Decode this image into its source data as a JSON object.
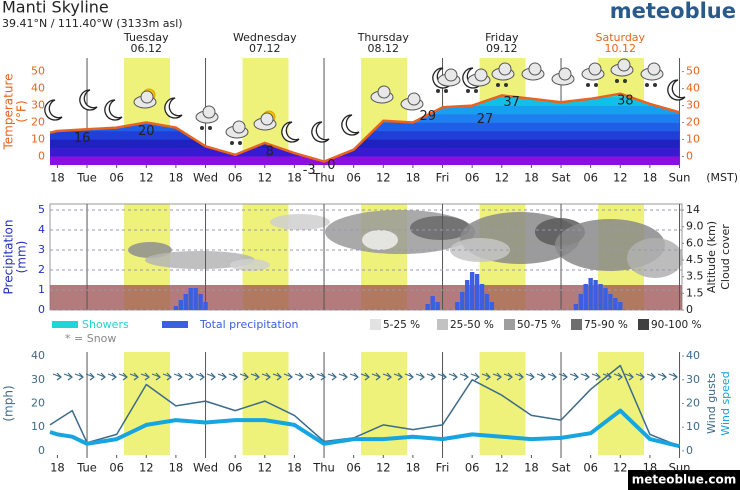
{
  "header": {
    "title": "Manti Skyline",
    "location": "39.41°N / 111.40°W (3133m asl)",
    "logo": "meteoblue",
    "timezone": "(MST)",
    "days": [
      {
        "name": "Tuesday",
        "date": "06.12",
        "color": "#222"
      },
      {
        "name": "Wednesday",
        "date": "07.12",
        "color": "#222"
      },
      {
        "name": "Thursday",
        "date": "08.12",
        "color": "#222"
      },
      {
        "name": "Friday",
        "date": "09.12",
        "color": "#222"
      },
      {
        "name": "Saturday",
        "date": "10.12",
        "color": "#e8641e"
      }
    ]
  },
  "footer": "meteoblue.com",
  "chart_data": [
    {
      "type": "line",
      "ylabel": "Temperature",
      "yunit": "(°F)",
      "color": "#e8641e",
      "area_fill": true,
      "xlim": [
        16.5,
        144.5
      ],
      "xticks": [
        18,
        {
          "value": 24,
          "label": "Tue"
        },
        {
          "value": 30,
          "label": "06"
        },
        {
          "value": 36,
          "label": "12"
        },
        {
          "value": 42,
          "label": "18"
        },
        {
          "value": 48,
          "label": "Wed"
        },
        {
          "value": 54,
          "label": "06"
        },
        {
          "value": 60,
          "label": "12"
        },
        {
          "value": 66,
          "label": "18"
        },
        {
          "value": 72,
          "label": "Thu"
        },
        {
          "value": 78,
          "label": "06"
        },
        {
          "value": 84,
          "label": "12"
        },
        {
          "value": 90,
          "label": "18"
        },
        {
          "value": 96,
          "label": "Fri"
        },
        {
          "value": 102,
          "label": "06"
        },
        {
          "value": 108,
          "label": "12"
        },
        {
          "value": 114,
          "label": "18"
        },
        {
          "value": 120,
          "label": "Sat"
        },
        {
          "value": 126,
          "label": "06"
        },
        {
          "value": 132,
          "label": "12"
        },
        {
          "value": 138,
          "label": "18"
        },
        {
          "value": 144,
          "label": "Sun"
        }
      ],
      "ylim": [
        -5,
        58
      ],
      "yticks": [
        0,
        10,
        20,
        30,
        40,
        50
      ],
      "y2lim": [
        -5,
        58
      ],
      "y2ticks": [
        0,
        10,
        20,
        30,
        40,
        50
      ],
      "x": [
        16.5,
        18,
        24,
        30,
        36,
        42,
        48,
        54,
        60,
        66,
        72,
        78,
        84,
        90,
        96,
        102,
        108,
        114,
        120,
        126,
        132,
        138,
        144
      ],
      "values": [
        14,
        15,
        16,
        17,
        20,
        17,
        6,
        1,
        8,
        2,
        -3,
        4,
        21,
        20,
        29,
        30,
        36,
        34,
        32,
        34,
        37,
        31,
        26
      ],
      "annotations": [
        {
          "x": 23,
          "value": 16
        },
        {
          "x": 36,
          "value": 20
        },
        {
          "x": 61,
          "value": 8
        },
        {
          "x": 69,
          "value": -3
        },
        {
          "x": 73.5,
          "value": 0
        },
        {
          "x": 93,
          "value": 29
        },
        {
          "x": 104.6,
          "value": 27
        },
        {
          "x": 110,
          "value": 37
        },
        {
          "x": 133,
          "value": 38
        }
      ]
    },
    {
      "type": "bar",
      "ylabel": "Precipitation",
      "yunit": "(mm)",
      "grid": true,
      "xlim": [
        16.5,
        144.5
      ],
      "ylim": [
        0,
        5.3
      ],
      "yticks": [
        0,
        1,
        2,
        3,
        4,
        5
      ],
      "y2label": "Altitude (km)",
      "y2label2": "Cloud cover",
      "y2ticks": [
        14,
        {
          "value": 9,
          "label": "9.0"
        },
        {
          "value": 6,
          "label": "6.0"
        },
        4.5,
        3.5,
        1.5,
        0
      ],
      "x": [
        42,
        43,
        44,
        45,
        46,
        47,
        48,
        93,
        94,
        95,
        99,
        100,
        101,
        102,
        103,
        104,
        105,
        106,
        123,
        124,
        125,
        126,
        127,
        128,
        129,
        130,
        131,
        132
      ],
      "series": [
        {
          "name": "Showers",
          "color": "#1ed6d6",
          "values": [
            0,
            0,
            0,
            0,
            0,
            0,
            0,
            0,
            0,
            0,
            0,
            0,
            0,
            0,
            0,
            0,
            0,
            0,
            0,
            0,
            0,
            0,
            0,
            0,
            0,
            0,
            0,
            0
          ]
        },
        {
          "name": "Total precipitation",
          "color": "#3b5fe0",
          "values": [
            0.2,
            0.5,
            0.8,
            1.1,
            1.1,
            0.8,
            0.4,
            0.3,
            0.7,
            0.4,
            0.4,
            0.9,
            1.5,
            1.9,
            1.8,
            1.3,
            0.8,
            0.4,
            0.3,
            0.8,
            1.3,
            1.6,
            1.5,
            1.3,
            1.1,
            0.8,
            0.6,
            0.4
          ]
        }
      ],
      "snow_note": "* = Snow",
      "cloud_legend": [
        {
          "label": "5-25 %",
          "color": "#e2e2e2"
        },
        {
          "label": "25-50 %",
          "color": "#c2c2c2"
        },
        {
          "label": "50-75 %",
          "color": "#9e9e9e"
        },
        {
          "label": "75-90 %",
          "color": "#6e6e6e"
        },
        {
          "label": "90-100 %",
          "color": "#404040"
        }
      ]
    },
    {
      "type": "line",
      "ylabel": "(mph)",
      "xlim": [
        16.5,
        144.5
      ],
      "xticks": [
        18,
        {
          "value": 24,
          "label": "Tue"
        },
        {
          "value": 30,
          "label": "06"
        },
        {
          "value": 36,
          "label": "12"
        },
        {
          "value": 42,
          "label": "18"
        },
        {
          "value": 48,
          "label": "Wed"
        },
        {
          "value": 54,
          "label": "06"
        },
        {
          "value": 60,
          "label": "12"
        },
        {
          "value": 66,
          "label": "18"
        },
        {
          "value": 72,
          "label": "Thu"
        },
        {
          "value": 78,
          "label": "06"
        },
        {
          "value": 84,
          "label": "12"
        },
        {
          "value": 90,
          "label": "18"
        },
        {
          "value": 96,
          "label": "Fri"
        },
        {
          "value": 102,
          "label": "06"
        },
        {
          "value": 108,
          "label": "12"
        },
        {
          "value": 114,
          "label": "18"
        },
        {
          "value": 120,
          "label": "Sat"
        },
        {
          "value": 126,
          "label": "06"
        },
        {
          "value": 132,
          "label": "12"
        },
        {
          "value": 138,
          "label": "18"
        },
        {
          "value": 144,
          "label": "Sun"
        }
      ],
      "ylim": [
        -1.7,
        41.7
      ],
      "yticks": [
        0,
        10,
        20,
        30,
        40
      ],
      "y2lim": [
        -1.7,
        41.7
      ],
      "y2ticks": [
        0,
        10,
        20,
        30,
        40
      ],
      "x": [
        16.5,
        18,
        21,
        24,
        30,
        36,
        42,
        48,
        54,
        60,
        66,
        72,
        78,
        84,
        90,
        96,
        102,
        108,
        114,
        120,
        126,
        132,
        138,
        144
      ],
      "series": [
        {
          "name": "Wind gusts",
          "color": "#3d6b8a",
          "line_width": 1.5,
          "values": [
            11,
            13,
            17,
            3.5,
            7,
            28,
            19,
            21,
            17,
            21,
            15,
            4,
            5.5,
            11,
            9,
            11,
            30,
            23.5,
            15,
            13,
            26,
            36,
            7,
            2
          ]
        },
        {
          "name": "Wind speed",
          "color": "#16a5e0",
          "line_width": 4,
          "values": [
            8,
            7,
            6,
            3,
            5,
            11,
            13,
            12,
            13,
            13,
            11,
            3,
            5,
            5,
            6,
            5,
            7,
            6,
            5,
            5.5,
            7.5,
            17,
            5,
            2
          ]
        }
      ]
    }
  ]
}
